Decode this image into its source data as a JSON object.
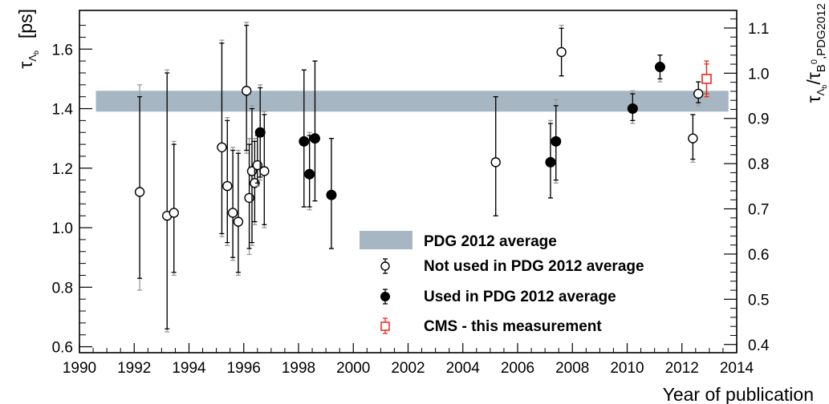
{
  "chart_data": {
    "type": "scatter",
    "title": "",
    "xlabel": "Year of publication",
    "ylabel": "τ",
    "ylabel_sub": "Λ",
    "ylabel_subsub": "b",
    "ylabel_unit": "[ps]",
    "y2label_num": "τ",
    "y2label_num_sub": "Λ",
    "y2label_num_subsub": "b",
    "y2label_den": "/τ",
    "y2label_den_sub": "B",
    "y2label_den_sup": "0",
    "y2label_den_tail": ",PDG2012",
    "xlim": [
      1990,
      2014
    ],
    "ylim": [
      0.58,
      1.73
    ],
    "x_ticks": [
      "1990",
      "1992",
      "1994",
      "1996",
      "1998",
      "2000",
      "2002",
      "2004",
      "2006",
      "2008",
      "2010",
      "2012",
      "2014"
    ],
    "y_ticks": [
      "0.6",
      "0.8",
      "1.0",
      "1.2",
      "1.4",
      "1.6"
    ],
    "y2_ticks": [
      "0.4",
      "0.5",
      "0.6",
      "0.7",
      "0.8",
      "0.9",
      "1.0",
      "1.1"
    ],
    "y2_scale_ref": 1.519,
    "band": {
      "name": "PDG 2012 average",
      "low": 1.39,
      "high": 1.46,
      "color": "#a7b6c3"
    },
    "series": [
      {
        "name": "Not used in PDG 2012 average",
        "marker": "open-circle",
        "color": "#000000",
        "points": [
          {
            "x": 1992.2,
            "y": 1.12,
            "lo_stat": 0.83,
            "hi_stat": 1.44,
            "lo_tot": 0.79,
            "hi_tot": 1.48
          },
          {
            "x": 1993.2,
            "y": 1.04,
            "lo_stat": 0.66,
            "hi_stat": 1.52,
            "lo_tot": 0.65,
            "hi_tot": 1.53
          },
          {
            "x": 1993.45,
            "y": 1.05,
            "lo_stat": 0.85,
            "hi_stat": 1.28,
            "lo_tot": 0.84,
            "hi_tot": 1.29
          },
          {
            "x": 1995.2,
            "y": 1.27,
            "lo_stat": 0.98,
            "hi_stat": 1.62,
            "lo_tot": 0.97,
            "hi_tot": 1.63
          },
          {
            "x": 1995.4,
            "y": 1.14,
            "lo_stat": 0.95,
            "hi_stat": 1.36,
            "lo_tot": 0.94,
            "hi_tot": 1.37
          },
          {
            "x": 1995.6,
            "y": 1.05,
            "lo_stat": 0.9,
            "hi_stat": 1.26,
            "lo_tot": 0.89,
            "hi_tot": 1.27
          },
          {
            "x": 1995.8,
            "y": 1.02,
            "lo_stat": 0.85,
            "hi_stat": 1.25,
            "lo_tot": 0.84,
            "hi_tot": 1.26
          },
          {
            "x": 1996.1,
            "y": 1.46,
            "lo_stat": 1.26,
            "hi_stat": 1.68,
            "lo_tot": 1.25,
            "hi_tot": 1.69
          },
          {
            "x": 1996.2,
            "y": 1.1,
            "lo_stat": 0.93,
            "hi_stat": 1.28,
            "lo_tot": 0.91,
            "hi_tot": 1.3
          },
          {
            "x": 1996.3,
            "y": 1.19,
            "lo_stat": 0.95,
            "hi_stat": 1.4,
            "lo_tot": 0.94,
            "hi_tot": 1.41
          },
          {
            "x": 1996.4,
            "y": 1.15,
            "lo_stat": 1.02,
            "hi_stat": 1.29,
            "lo_tot": 1.01,
            "hi_tot": 1.3
          },
          {
            "x": 1996.5,
            "y": 1.21,
            "lo_stat": 1.15,
            "hi_stat": 1.31,
            "lo_tot": 1.14,
            "hi_tot": 1.32
          },
          {
            "x": 1996.75,
            "y": 1.19,
            "lo_stat": 1.01,
            "hi_stat": 1.38,
            "lo_tot": 1.0,
            "hi_tot": 1.39
          },
          {
            "x": 2005.2,
            "y": 1.22,
            "lo_stat": 1.04,
            "hi_stat": 1.44,
            "lo_tot": 1.04,
            "hi_tot": 1.44
          },
          {
            "x": 2007.6,
            "y": 1.59,
            "lo_stat": 1.51,
            "hi_stat": 1.67,
            "lo_tot": 1.51,
            "hi_tot": 1.68
          },
          {
            "x": 2012.4,
            "y": 1.3,
            "lo_stat": 1.23,
            "hi_stat": 1.38,
            "lo_tot": 1.22,
            "hi_tot": 1.38
          },
          {
            "x": 2012.6,
            "y": 1.45,
            "lo_stat": 1.42,
            "hi_stat": 1.49,
            "lo_tot": 1.41,
            "hi_tot": 1.49
          }
        ]
      },
      {
        "name": "Used in PDG 2012 average",
        "marker": "filled-circle",
        "color": "#000000",
        "points": [
          {
            "x": 1996.6,
            "y": 1.32,
            "lo_stat": 1.17,
            "hi_stat": 1.47,
            "lo_tot": 1.16,
            "hi_tot": 1.48
          },
          {
            "x": 1998.2,
            "y": 1.29,
            "lo_stat": 1.07,
            "hi_stat": 1.53,
            "lo_tot": 1.07,
            "hi_tot": 1.53
          },
          {
            "x": 1998.4,
            "y": 1.18,
            "lo_stat": 1.07,
            "hi_stat": 1.31,
            "lo_tot": 1.06,
            "hi_tot": 1.32
          },
          {
            "x": 1998.6,
            "y": 1.3,
            "lo_stat": 1.09,
            "hi_stat": 1.56,
            "lo_tot": 1.09,
            "hi_tot": 1.56
          },
          {
            "x": 1999.2,
            "y": 1.11,
            "lo_stat": 0.93,
            "hi_stat": 1.3,
            "lo_tot": 0.93,
            "hi_tot": 1.3
          },
          {
            "x": 2007.2,
            "y": 1.22,
            "lo_stat": 1.1,
            "hi_stat": 1.35,
            "lo_tot": 1.1,
            "hi_tot": 1.36
          },
          {
            "x": 2007.4,
            "y": 1.29,
            "lo_stat": 1.16,
            "hi_stat": 1.41,
            "lo_tot": 1.15,
            "hi_tot": 1.43
          },
          {
            "x": 2010.2,
            "y": 1.4,
            "lo_stat": 1.36,
            "hi_stat": 1.45,
            "lo_tot": 1.35,
            "hi_tot": 1.46
          },
          {
            "x": 2011.2,
            "y": 1.54,
            "lo_stat": 1.5,
            "hi_stat": 1.58,
            "lo_tot": 1.49,
            "hi_tot": 1.58
          }
        ]
      },
      {
        "name": "CMS - this measurement",
        "marker": "open-square",
        "color": "#e8281e",
        "points": [
          {
            "x": 2012.9,
            "y": 1.5,
            "lo_stat": 1.45,
            "hi_stat": 1.55,
            "lo_tot": 1.44,
            "hi_tot": 1.56
          }
        ]
      }
    ],
    "legend": {
      "placement": "bottom-right",
      "entries": [
        {
          "label": "PDG 2012 average",
          "marker": "band"
        },
        {
          "label": "Not used in PDG 2012 average",
          "marker": "open-circle"
        },
        {
          "label": "Used in PDG 2012 average",
          "marker": "filled-circle"
        },
        {
          "label": "CMS - this measurement",
          "marker": "open-square"
        }
      ]
    }
  }
}
